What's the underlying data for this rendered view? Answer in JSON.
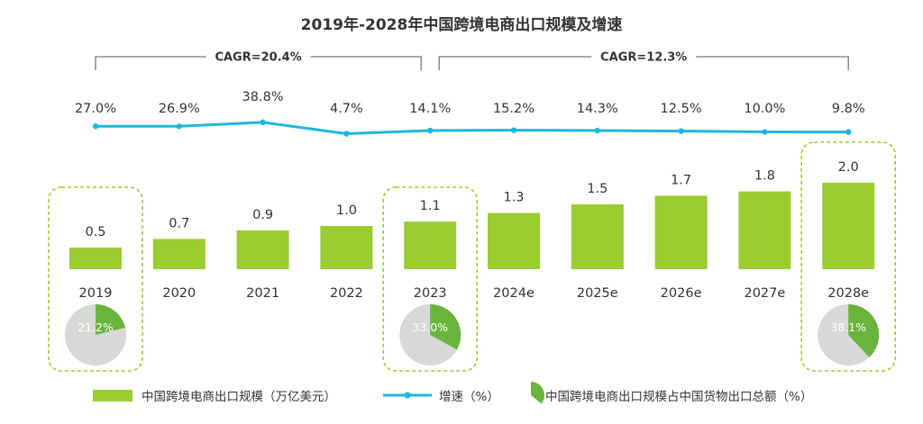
{
  "chart_data": {
    "type": "bar",
    "title": "2019年-2028年中国跨境电商出口规模及增速",
    "categories": [
      "2019",
      "2020",
      "2021",
      "2022",
      "2023",
      "2024e",
      "2025e",
      "2026e",
      "2027e",
      "2028e"
    ],
    "series": [
      {
        "name": "中国跨境电商出口规模（万亿美元）",
        "type": "bar",
        "color": "#9acd32",
        "values": [
          0.5,
          0.7,
          0.9,
          1.0,
          1.1,
          1.3,
          1.5,
          1.7,
          1.8,
          2.0
        ],
        "labels": [
          "0.5",
          "0.7",
          "0.9",
          "1.0",
          "1.1",
          "1.3",
          "1.5",
          "1.7",
          "1.8",
          "2.0"
        ]
      },
      {
        "name": "增速（%）",
        "type": "line",
        "color": "#1fb6e0",
        "values": [
          27.0,
          26.9,
          38.8,
          4.7,
          14.1,
          15.2,
          14.3,
          12.5,
          10.0,
          9.8
        ],
        "labels": [
          "27.0%",
          "26.9%",
          "38.8%",
          "4.7%",
          "14.1%",
          "15.2%",
          "14.3%",
          "12.5%",
          "10.0%",
          "9.8%"
        ]
      }
    ],
    "pies": {
      "name": "中国跨境电商出口规模占中国货物出口总额（%）",
      "color": "#6ab43e",
      "rest_color": "#d8d8d8",
      "items": [
        {
          "category": "2019",
          "value": 21.2,
          "label": "21.2%"
        },
        {
          "category": "2023",
          "value": 33.0,
          "label": "33.0%"
        },
        {
          "category": "2028e",
          "value": 38.1,
          "label": "38.1%"
        }
      ]
    },
    "annotations": [
      {
        "text": "CAGR=20.4%",
        "from": "2019",
        "to": "2023"
      },
      {
        "text": "CAGR=12.3%",
        "from": "2023",
        "to": "2028e"
      }
    ],
    "highlighted_categories": [
      "2019",
      "2023",
      "2028e"
    ],
    "ylim": [
      0,
      2.5
    ],
    "legend": "bottom",
    "grid": false
  }
}
